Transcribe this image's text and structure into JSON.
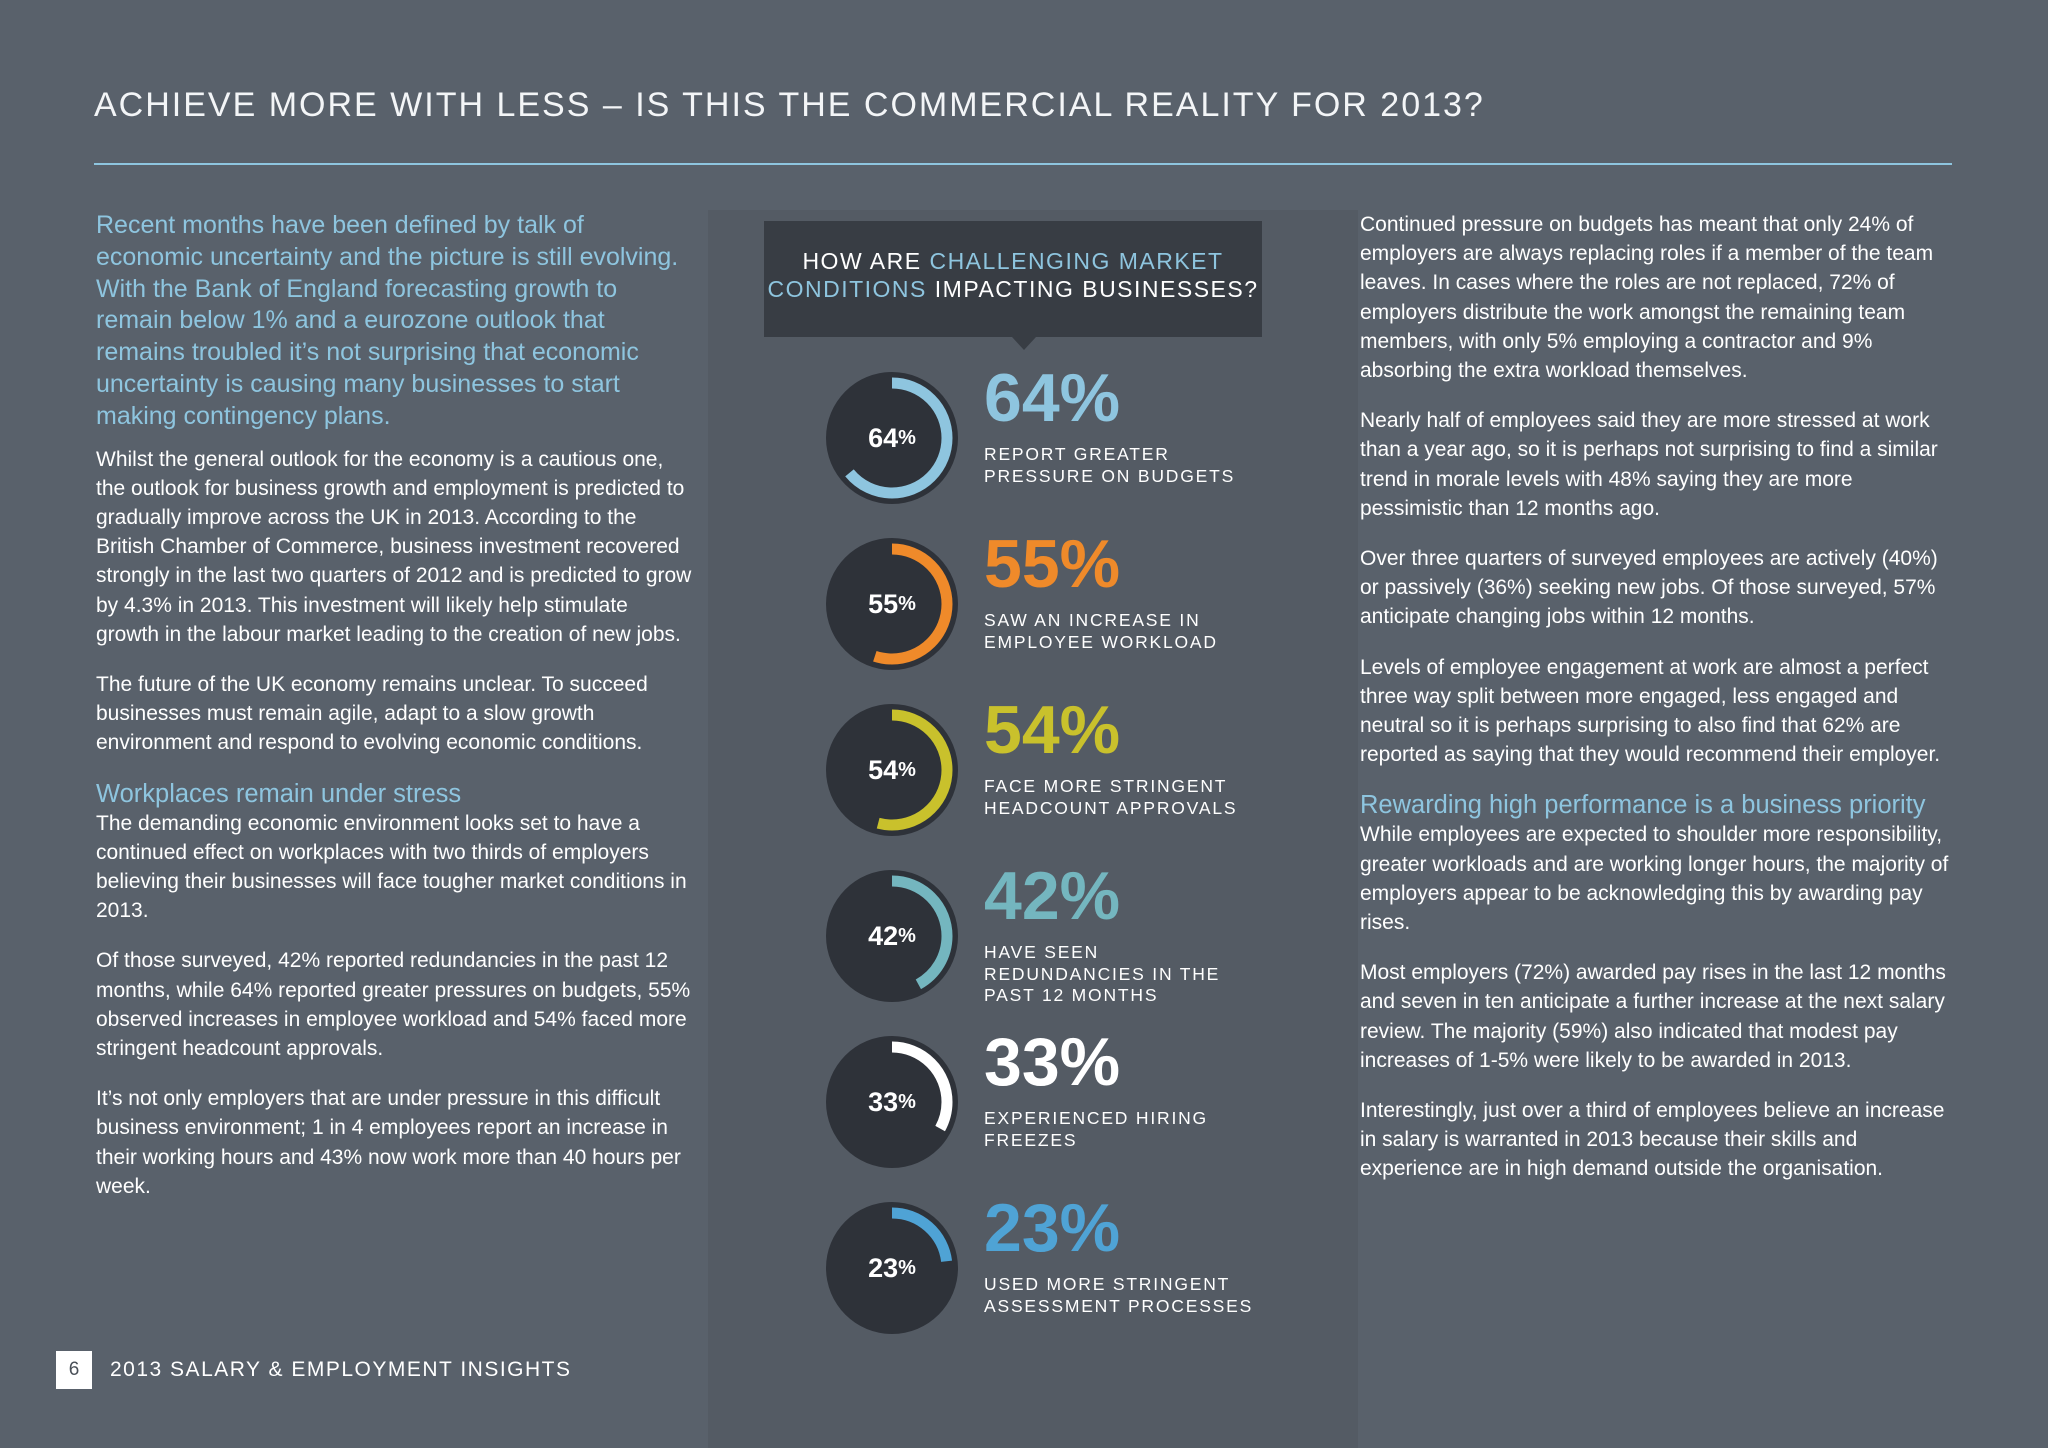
{
  "page": {
    "title": "ACHIEVE MORE WITH LESS – IS THIS THE COMMERCIAL REALITY FOR 2013?",
    "accent_color": "#8ec5df",
    "background_color": "#59616b"
  },
  "left_column": {
    "lead": "Recent months have been defined by talk of economic uncertainty and the picture is still evolving. With the Bank of England forecasting growth to remain below 1% and a eurozone outlook that remains troubled it’s not surprising that economic uncertainty is causing many businesses to start making contingency plans.",
    "p1": "Whilst the general outlook for the economy is a cautious one, the outlook for business growth and employment is predicted to gradually improve across the UK in 2013. According to the British Chamber of Commerce, business investment recovered strongly in the last two quarters of 2012 and is predicted to grow by 4.3% in 2013. This investment will likely help stimulate growth in the labour market leading to the creation of new jobs.",
    "p2": "The future of the UK economy remains unclear. To succeed businesses must remain agile, adapt to a slow growth environment and respond to evolving economic conditions.",
    "subheading": "Workplaces remain under stress",
    "p3": "The demanding economic environment looks set to have a continued effect on workplaces with two thirds of employers believing their businesses will face tougher market conditions in 2013.",
    "p4": "Of those surveyed, 42% reported redundancies in the past 12 months, while 64% reported greater pressures on budgets, 55% observed increases in employee workload and 54% faced more stringent headcount approvals.",
    "p5": "It’s not only employers that are under pressure in this difficult business environment; 1 in 4 employees report an increase in their working hours and 43% now work more than 40 hours per week."
  },
  "infographic": {
    "question_pre": "HOW ARE ",
    "question_highlight_1": "CHALLENGING MARKET",
    "question_highlight_2": "CONDITIONS",
    "question_post": " IMPACTING BUSINESSES?",
    "stats": [
      {
        "value": 64,
        "number": "64",
        "pct_sign": "%",
        "big": "64%",
        "label": "REPORT GREATER PRESSURE ON BUDGETS",
        "color": "#8ec5df"
      },
      {
        "value": 55,
        "number": "55",
        "pct_sign": "%",
        "big": "55%",
        "label": "SAW AN INCREASE IN EMPLOYEE WORKLOAD",
        "color": "#ef8a2a"
      },
      {
        "value": 54,
        "number": "54",
        "pct_sign": "%",
        "big": "54%",
        "label": "FACE MORE STRINGENT HEADCOUNT APPROVALS",
        "color": "#c9c12c"
      },
      {
        "value": 42,
        "number": "42",
        "pct_sign": "%",
        "big": "42%",
        "label": "HAVE SEEN REDUNDANCIES IN THE PAST 12 MONTHS",
        "color": "#74b6bf"
      },
      {
        "value": 33,
        "number": "33",
        "pct_sign": "%",
        "big": "33%",
        "label": "EXPERIENCED HIRING FREEZES",
        "color": "#ffffff"
      },
      {
        "value": 23,
        "number": "23",
        "pct_sign": "%",
        "big": "23%",
        "label": "USED MORE STRINGENT ASSESSMENT PROCESSES",
        "color": "#4fa3d5"
      }
    ]
  },
  "right_column": {
    "p1": "Continued pressure on budgets has meant that only 24% of employers are always replacing roles if a member of the team leaves. In cases where the roles are not replaced, 72% of employers distribute the work amongst the remaining team members, with only 5% employing a contractor and 9% absorbing the extra workload themselves.",
    "p2": "Nearly half of employees said they are more stressed at work than a year ago, so it is perhaps not surprising to find a similar trend in morale levels with 48% saying they are more pessimistic than 12 months ago.",
    "p3": "Over three quarters of surveyed employees are actively (40%) or passively (36%) seeking new jobs. Of those surveyed, 57% anticipate changing jobs within 12 months.",
    "p4": "Levels of employee engagement at work are almost a perfect three way split between more engaged, less engaged and neutral so it is perhaps surprising to also find that 62% are reported as saying that they would recommend their employer.",
    "subheading": "Rewarding high performance is a business priority",
    "p5": "While employees are expected to shoulder more responsibility, greater workloads and are working longer hours, the majority of employers appear to be acknowledging this by awarding pay rises.",
    "p6": "Most employers (72%) awarded pay rises in the last 12 months and seven in ten anticipate a further increase at the next salary review. The majority (59%) also indicated that modest pay increases of 1-5% were likely to be awarded in 2013.",
    "p7": "Interestingly, just over a third of employees believe an increase in salary is warranted in 2013 because their skills and experience are in high demand outside the organisation."
  },
  "footer": {
    "page_number": "6",
    "publication": "2013 SALARY & EMPLOYMENT INSIGHTS"
  }
}
